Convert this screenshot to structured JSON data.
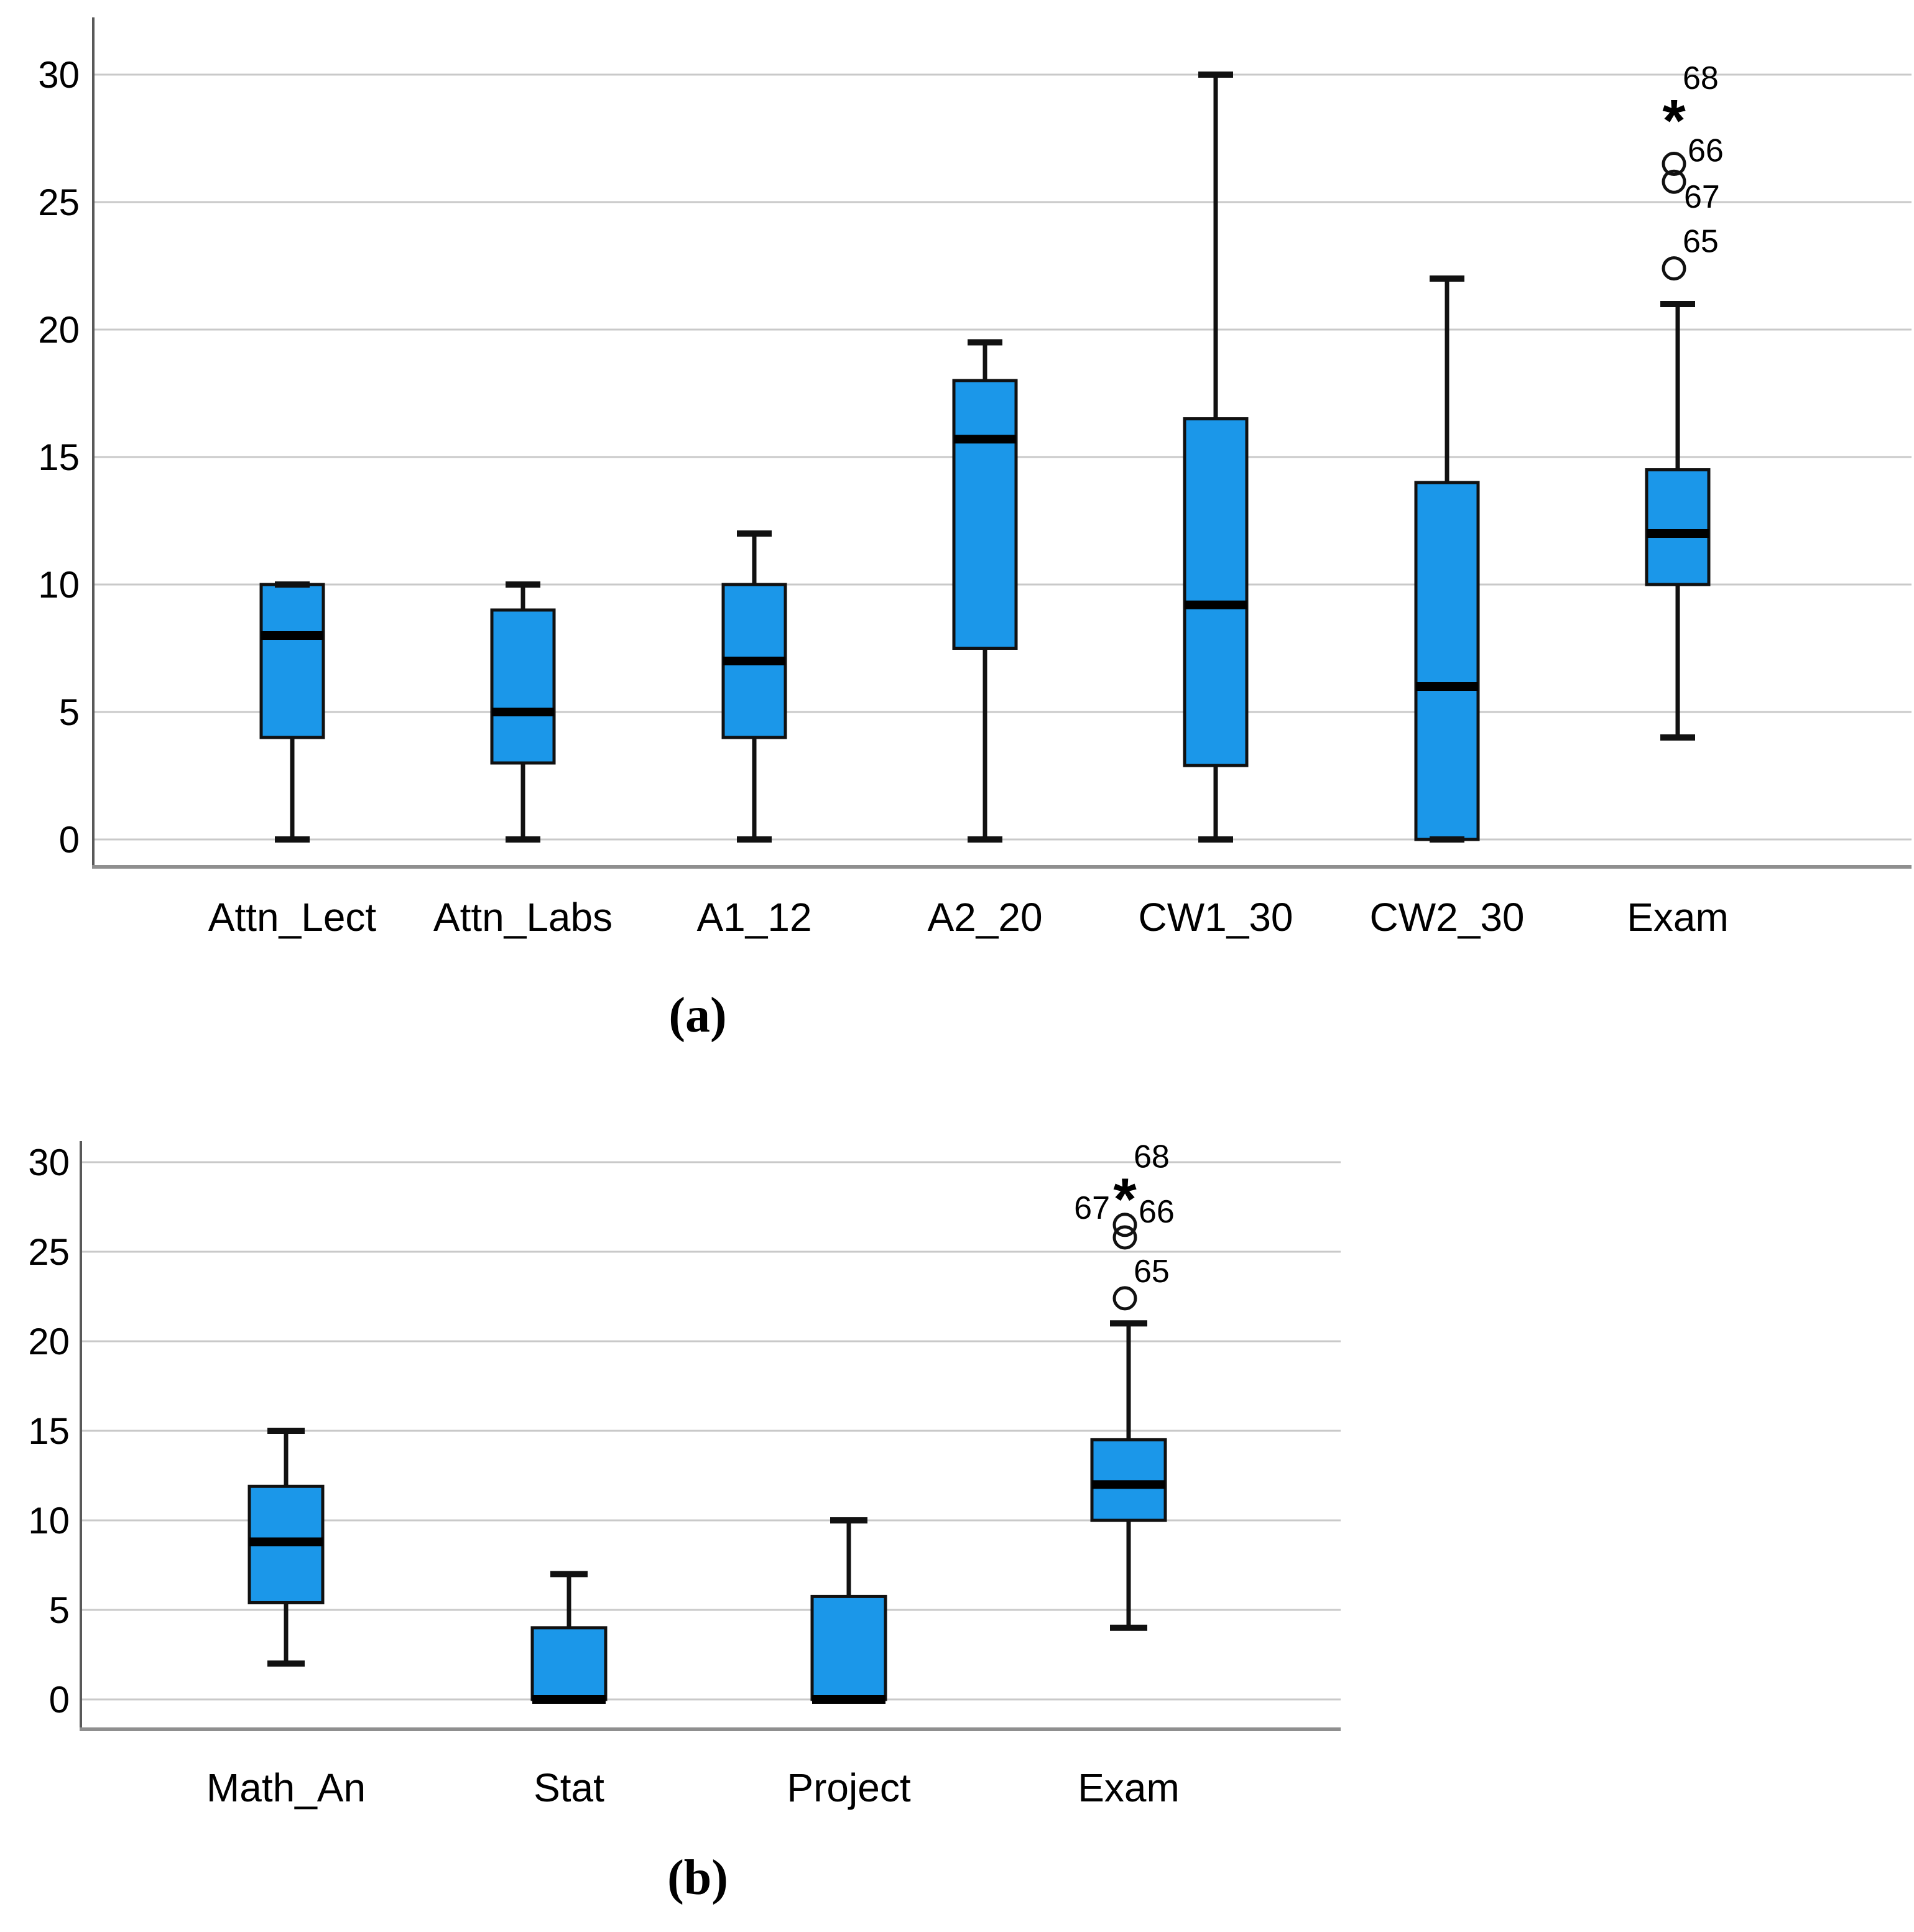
{
  "style": {
    "background": "#ffffff",
    "box_fill": "#1B97E9",
    "box_stroke": "#111111",
    "median_color": "#000000",
    "whisker_color": "#111111",
    "gridline_color": "#c9c9c9",
    "axis_line_color": "#595959",
    "baseline_color": "#8f8f8f",
    "text_color": "#000000",
    "outlier_stroke": "#111111"
  },
  "chart_data": [
    {
      "id": "a",
      "type": "boxplot",
      "caption": "(a)",
      "title": "",
      "xlabel": "",
      "ylabel": "",
      "ylim": [
        0,
        30
      ],
      "yticks": [
        0,
        5,
        10,
        15,
        20,
        25,
        30
      ],
      "grid": true,
      "categories": [
        "Attn_Lect",
        "Attn_Labs",
        "A1_12",
        "A2_20",
        "CW1_30",
        "CW2_30",
        "Exam"
      ],
      "boxes": [
        {
          "category": "Attn_Lect",
          "whisker_low": 0,
          "q1": 4,
          "median": 8,
          "q3": 10,
          "whisker_high": 10,
          "outliers": []
        },
        {
          "category": "Attn_Labs",
          "whisker_low": 0,
          "q1": 3,
          "median": 5,
          "q3": 9,
          "whisker_high": 10,
          "outliers": []
        },
        {
          "category": "A1_12",
          "whisker_low": 0,
          "q1": 4,
          "median": 7,
          "q3": 10,
          "whisker_high": 12,
          "outliers": []
        },
        {
          "category": "A2_20",
          "whisker_low": 0,
          "q1": 7.5,
          "median": 15.7,
          "q3": 18,
          "whisker_high": 19.5,
          "outliers": []
        },
        {
          "category": "CW1_30",
          "whisker_low": 0,
          "q1": 2.9,
          "median": 9.2,
          "q3": 16.5,
          "whisker_high": 30,
          "outliers": []
        },
        {
          "category": "CW2_30",
          "whisker_low": 0,
          "q1": 0,
          "median": 6,
          "q3": 14,
          "whisker_high": 22,
          "outliers": []
        },
        {
          "category": "Exam",
          "whisker_low": 4,
          "q1": 10,
          "median": 12,
          "q3": 14.5,
          "whisker_high": 21,
          "outliers": [
            {
              "value": 22.4,
              "symbol": "circle",
              "label": "65",
              "placement": "above-right"
            },
            {
              "value": 25.8,
              "symbol": "circle",
              "label": "67",
              "placement": "below-right"
            },
            {
              "value": 26.5,
              "symbol": "circle",
              "label": "66",
              "placement": "right"
            },
            {
              "value": 28.8,
              "symbol": "asterisk",
              "label": "68",
              "placement": "above-right"
            }
          ]
        }
      ]
    },
    {
      "id": "b",
      "type": "boxplot",
      "caption": "(b)",
      "title": "",
      "xlabel": "",
      "ylabel": "",
      "ylim": [
        0,
        30
      ],
      "yticks": [
        0,
        5,
        10,
        15,
        20,
        25,
        30
      ],
      "grid": true,
      "categories": [
        "Math_An",
        "Stat",
        "Project",
        "Exam"
      ],
      "boxes": [
        {
          "category": "Math_An",
          "whisker_low": 2,
          "q1": 5.4,
          "median": 8.8,
          "q3": 11.9,
          "whisker_high": 15,
          "outliers": []
        },
        {
          "category": "Stat",
          "whisker_low": 0,
          "q1": 0,
          "median": 0,
          "q3": 4,
          "whisker_high": 7,
          "outliers": []
        },
        {
          "category": "Project",
          "whisker_low": 0,
          "q1": 0,
          "median": 0,
          "q3": 5.75,
          "whisker_high": 10,
          "outliers": []
        },
        {
          "category": "Exam",
          "whisker_low": 4,
          "q1": 10,
          "median": 12,
          "q3": 14.5,
          "whisker_high": 21,
          "outliers": [
            {
              "value": 22.4,
              "symbol": "circle",
              "label": "65",
              "placement": "above-right"
            },
            {
              "value": 25.8,
              "symbol": "circle",
              "label": "67",
              "placement": "left"
            },
            {
              "value": 26.5,
              "symbol": "circle",
              "label": "66",
              "placement": "right"
            },
            {
              "value": 28.8,
              "symbol": "asterisk",
              "label": "68",
              "placement": "above-right"
            }
          ]
        }
      ]
    }
  ]
}
